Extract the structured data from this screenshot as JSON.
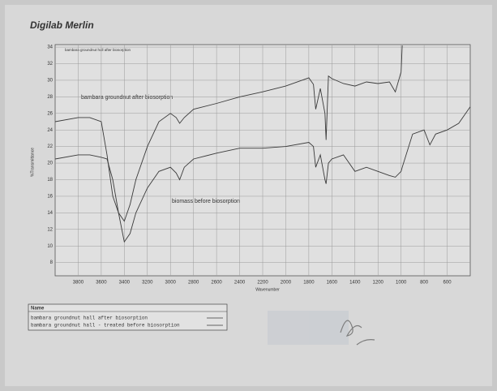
{
  "chart_data": {
    "type": "line",
    "header": "Digilab Merlin",
    "title": "bambara groundnut hull after biosorption",
    "annotations": [
      "bambara groundnut after biosorption",
      "biomass before biosorption"
    ],
    "x_label": "Wavenumber",
    "y_label": "%Transmittance",
    "legend_title": "Name",
    "x": [
      4000,
      3800,
      3700,
      3600,
      3550,
      3500,
      3450,
      3400,
      3350,
      3300,
      3200,
      3100,
      3000,
      2950,
      2920,
      2880,
      2800,
      2600,
      2400,
      2200,
      2000,
      1800,
      1760,
      1740,
      1700,
      1660,
      1650,
      1630,
      1600,
      1500,
      1400,
      1300,
      1200,
      1100,
      1050,
      1000,
      990,
      900,
      800,
      750,
      700,
      600,
      500,
      400
    ],
    "series": [
      {
        "name": "bambara groundnut hall after biosorption",
        "color": "#3a3a3a",
        "values": [
          25,
          25.5,
          25.5,
          25,
          21,
          16,
          14,
          13,
          15,
          18,
          22,
          25,
          26,
          25.5,
          24.8,
          25.5,
          26.5,
          27.2,
          28,
          28.6,
          29.3,
          30.3,
          29.5,
          26.5,
          29,
          26,
          22.8,
          30.5,
          30.2,
          29.6,
          29.3,
          29.8,
          29.6,
          29.8,
          28.6,
          31,
          34.2,
          null,
          null,
          null,
          null,
          null,
          null,
          null
        ]
      },
      {
        "name": "bambara groundnut hall - treated before biosorption",
        "color": "#3a3a3a",
        "values": [
          20.5,
          21,
          21,
          20.7,
          20.5,
          18,
          14,
          10.5,
          11.5,
          14,
          17,
          19,
          19.5,
          18.8,
          18,
          19.5,
          20.5,
          21.2,
          21.8,
          21.8,
          22,
          22.5,
          22,
          19.5,
          21,
          18,
          17.5,
          20,
          20.5,
          21,
          19,
          19.5,
          19,
          18.5,
          18.3,
          19,
          19.5,
          23.5,
          24,
          22.2,
          23.5,
          24,
          24.8,
          26.8
        ]
      }
    ],
    "xlim": [
      4000,
      400
    ],
    "xticks": [
      3800,
      3600,
      3400,
      3200,
      3000,
      2800,
      2600,
      2400,
      2200,
      2000,
      1800,
      1600,
      1400,
      1200,
      1000,
      800,
      600
    ],
    "ylim": [
      6.4,
      34.3
    ],
    "yticks": [
      34,
      32,
      30,
      28,
      26,
      24,
      22,
      20,
      18,
      16,
      14,
      12,
      10,
      8
    ],
    "grid": true
  }
}
